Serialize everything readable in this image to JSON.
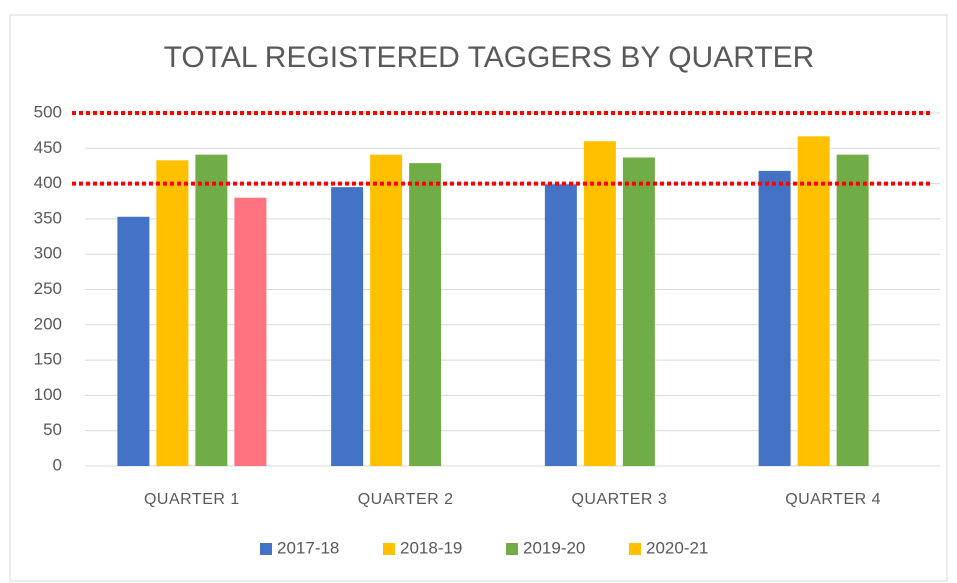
{
  "chart_data": {
    "type": "bar",
    "title": "TOTAL REGISTERED TAGGERS BY QUARTER",
    "categories": [
      "QUARTER 1",
      "QUARTER 2",
      "QUARTER 3",
      "QUARTER 4"
    ],
    "series": [
      {
        "name": "2017-18",
        "color": "#4472c4",
        "values": [
          353,
          395,
          399,
          418
        ]
      },
      {
        "name": "2018-19",
        "color": "#ffc000",
        "values": [
          433,
          441,
          460,
          467
        ]
      },
      {
        "name": "2019-20",
        "color": "#70ad47",
        "values": [
          441,
          429,
          437,
          441
        ]
      },
      {
        "name": "2020-21",
        "color": "#ff7381",
        "legend_color": "#ffc000",
        "values": [
          380,
          null,
          null,
          null
        ]
      }
    ],
    "ylim": [
      0,
      500
    ],
    "yticks": [
      0,
      50,
      100,
      150,
      200,
      250,
      300,
      350,
      400,
      450,
      500
    ],
    "grid": true,
    "legend": "bottom",
    "reference_lines": [
      {
        "value": 500,
        "color": "#ff0000"
      },
      {
        "value": 400,
        "color": "#ff0000"
      }
    ]
  }
}
